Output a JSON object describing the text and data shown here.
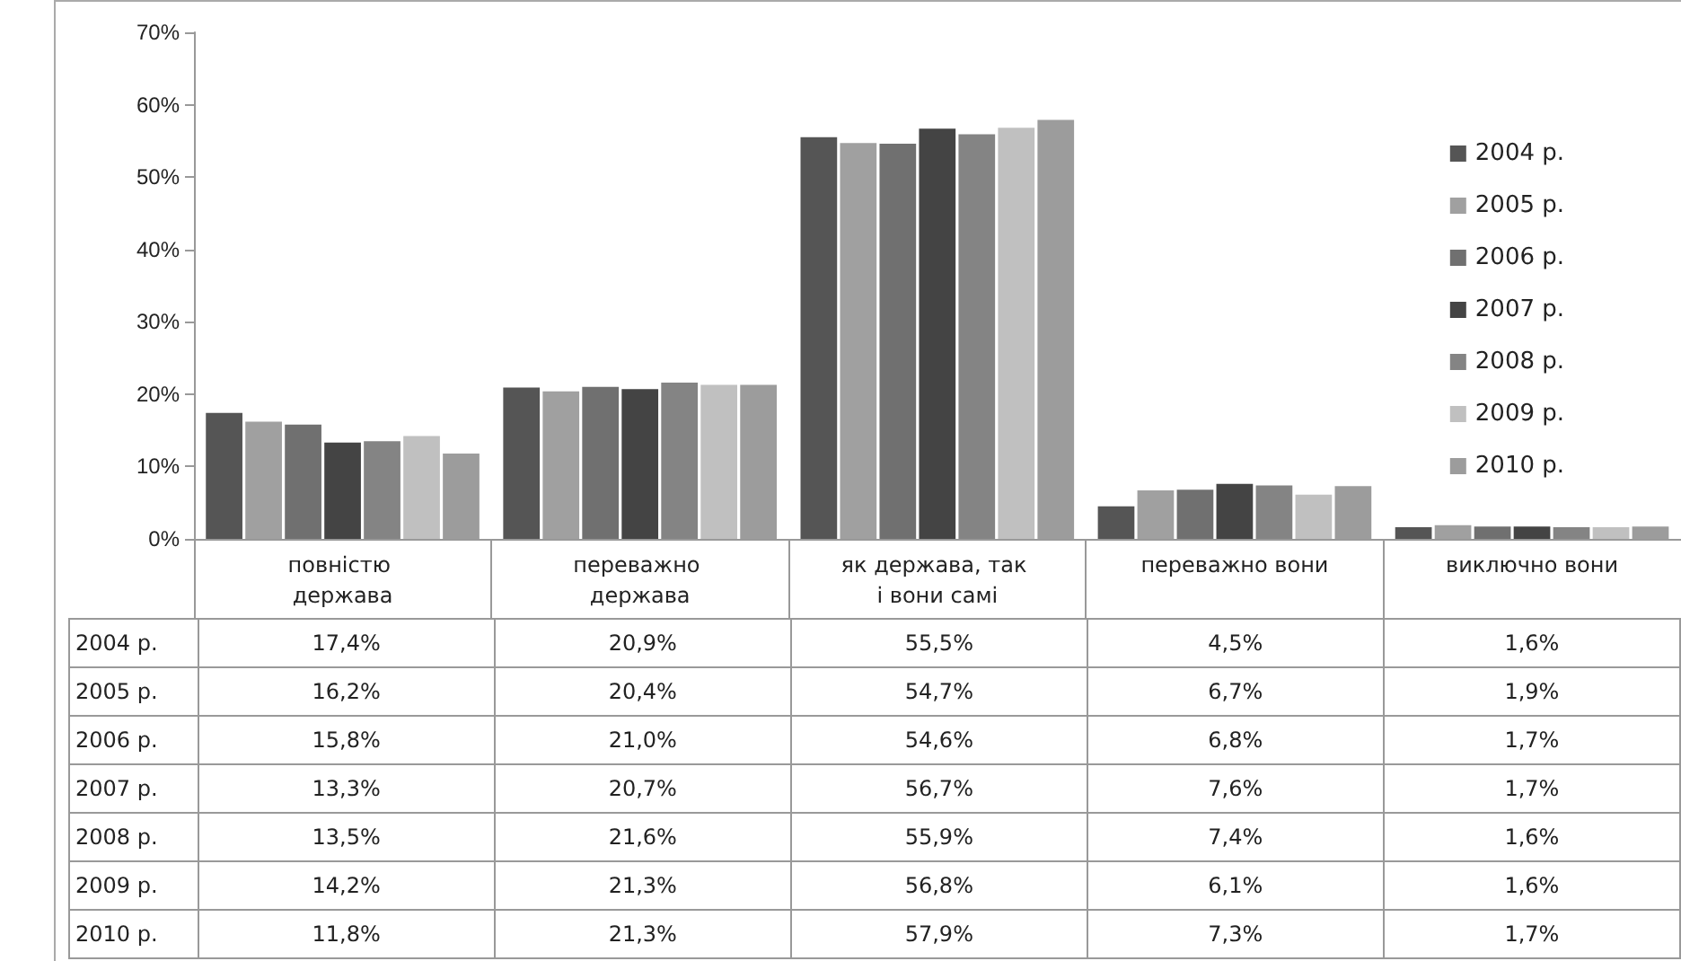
{
  "chart_data": {
    "type": "bar",
    "categories": [
      "повністю держава",
      "переважно держава",
      "як держава, так і вони самі",
      "переважно вони",
      "виключно вони"
    ],
    "series": [
      {
        "name": "2004 р.",
        "color": "#555555",
        "values": [
          17.4,
          20.9,
          55.5,
          4.5,
          1.6
        ],
        "value_labels": [
          "17,4%",
          "20,9%",
          "55,5%",
          "4,5%",
          "1,6%"
        ]
      },
      {
        "name": "2005 р.",
        "color": "#a0a0a0",
        "values": [
          16.2,
          20.4,
          54.7,
          6.7,
          1.9
        ],
        "value_labels": [
          "16,2%",
          "20,4%",
          "54,7%",
          "6,7%",
          "1,9%"
        ]
      },
      {
        "name": "2006 р.",
        "color": "#707070",
        "values": [
          15.8,
          21.0,
          54.6,
          6.8,
          1.7
        ],
        "value_labels": [
          "15,8%",
          "21,0%",
          "54,6%",
          "6,8%",
          "1,7%"
        ]
      },
      {
        "name": "2007 р.",
        "color": "#444444",
        "values": [
          13.3,
          20.7,
          56.7,
          7.6,
          1.7
        ],
        "value_labels": [
          "13,3%",
          "20,7%",
          "56,7%",
          "7,6%",
          "1,7%"
        ]
      },
      {
        "name": "2008 р.",
        "color": "#848484",
        "values": [
          13.5,
          21.6,
          55.9,
          7.4,
          1.6
        ],
        "value_labels": [
          "13,5%",
          "21,6%",
          "55,9%",
          "7,4%",
          "1,6%"
        ]
      },
      {
        "name": "2009 р.",
        "color": "#c0c0c0",
        "values": [
          14.2,
          21.3,
          56.8,
          6.1,
          1.6
        ],
        "value_labels": [
          "14,2%",
          "21,3%",
          "56,8%",
          "6,1%",
          "1,6%"
        ]
      },
      {
        "name": "2010 р.",
        "color": "#9c9c9c",
        "values": [
          11.8,
          21.3,
          57.9,
          7.3,
          1.7
        ],
        "value_labels": [
          "11,8%",
          "21,3%",
          "57,9%",
          "7,3%",
          "1,7%"
        ]
      }
    ],
    "ylim": [
      0,
      70
    ],
    "yticks": [
      {
        "value": 0,
        "label": "0%"
      },
      {
        "value": 10,
        "label": "10%"
      },
      {
        "value": 20,
        "label": "20%"
      },
      {
        "value": 30,
        "label": "30%"
      },
      {
        "value": 40,
        "label": "40%"
      },
      {
        "value": 50,
        "label": "50%"
      },
      {
        "value": 60,
        "label": "60%"
      },
      {
        "value": 70,
        "label": "70%"
      }
    ],
    "grid": false,
    "legend": "right"
  }
}
